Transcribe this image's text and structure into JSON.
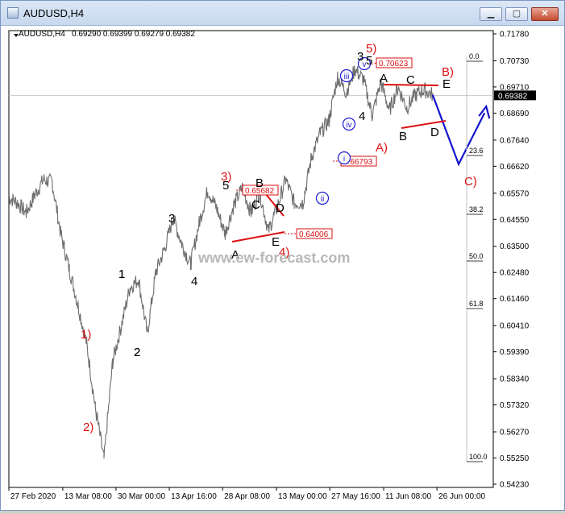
{
  "window": {
    "title": "AUDUSD,H4",
    "buttons": {
      "minimize": "▁",
      "maximize": "▢",
      "close": "✕"
    }
  },
  "chart_header": {
    "symbol": "AUDUSD,H4",
    "ohlc": "0.69290 0.69399 0.69279 0.69382"
  },
  "watermark": "www.ew-forecast.com",
  "chart_data": {
    "type": "line",
    "x_labels": [
      "27 Feb 2020",
      "13 Mar 08:00",
      "30 Mar 00:00",
      "13 Apr 16:00",
      "28 Apr 08:00",
      "13 May 00:00",
      "27 May 16:00",
      "11 Jun 08:00",
      "26 Jun 00:00"
    ],
    "y_ticks": [
      "0.71780",
      "0.70730",
      "0.69710",
      "0.68690",
      "0.67640",
      "0.66620",
      "0.65570",
      "0.64550",
      "0.63500",
      "0.62480",
      "0.61460",
      "0.60410",
      "0.59390",
      "0.58340",
      "0.57320",
      "0.56270",
      "0.55250",
      "0.54230"
    ],
    "current_price": "0.69382",
    "price_path": [
      [
        0,
        0.654
      ],
      [
        1,
        0.652
      ],
      [
        2,
        0.648
      ],
      [
        3,
        0.655
      ],
      [
        4,
        0.661
      ],
      [
        5,
        0.66
      ],
      [
        6,
        0.64
      ],
      [
        7,
        0.626
      ],
      [
        8,
        0.612
      ],
      [
        9,
        0.597
      ],
      [
        10,
        0.572
      ],
      [
        11,
        0.552
      ],
      [
        12,
        0.59
      ],
      [
        13,
        0.604
      ],
      [
        14,
        0.619
      ],
      [
        15,
        0.622
      ],
      [
        16,
        0.601
      ],
      [
        17,
        0.625
      ],
      [
        18,
        0.634
      ],
      [
        19,
        0.646
      ],
      [
        20,
        0.636
      ],
      [
        21,
        0.628
      ],
      [
        22,
        0.644
      ],
      [
        23,
        0.657
      ],
      [
        24,
        0.65
      ],
      [
        25,
        0.64
      ],
      [
        26,
        0.651
      ],
      [
        27,
        0.658
      ],
      [
        28,
        0.648
      ],
      [
        29,
        0.656
      ],
      [
        30,
        0.641
      ],
      [
        31,
        0.65
      ],
      [
        32,
        0.661
      ],
      [
        33,
        0.652
      ],
      [
        34,
        0.652
      ],
      [
        35,
        0.67
      ],
      [
        36,
        0.679
      ],
      [
        37,
        0.684
      ],
      [
        38,
        0.701
      ],
      [
        39,
        0.695
      ],
      [
        40,
        0.704
      ],
      [
        41,
        0.7
      ],
      [
        42,
        0.686
      ],
      [
        43,
        0.699
      ],
      [
        44,
        0.688
      ],
      [
        45,
        0.697
      ],
      [
        46,
        0.689
      ],
      [
        47,
        0.694
      ],
      [
        48,
        0.696
      ],
      [
        49,
        0.694
      ]
    ],
    "projection": [
      [
        49,
        0.694
      ],
      [
        52,
        0.667
      ],
      [
        55,
        0.687
      ]
    ],
    "wave_labels": [
      {
        "text": "1)",
        "x": 12.6,
        "y": 0.599,
        "color": "red"
      },
      {
        "text": "2)",
        "x": 13.2,
        "y": 0.566,
        "color": "red"
      },
      {
        "text": "1",
        "x": 18.0,
        "y": 0.624,
        "color": "black"
      },
      {
        "text": "2",
        "x": 20.3,
        "y": 0.593,
        "color": "black"
      },
      {
        "text": "3",
        "x": 25.6,
        "y": 0.647,
        "color": "black"
      },
      {
        "text": "4",
        "x": 29.0,
        "y": 0.62,
        "color": "black"
      },
      {
        "text": "3)",
        "x": 33.9,
        "y": 0.662,
        "color": "red"
      },
      {
        "text": "5",
        "x": 33.9,
        "y": 0.658,
        "color": "black"
      },
      {
        "text": "B",
        "x": 39.0,
        "y": 0.659,
        "color": "black"
      },
      {
        "text": "A",
        "x": 35.3,
        "y": 0.631,
        "color": "black"
      },
      {
        "text": "C",
        "x": 41.4,
        "y": 0.641,
        "color": "black"
      },
      {
        "text": "D",
        "x": 42.2,
        "y": 0.649,
        "color": "black"
      },
      {
        "text": "E",
        "x": 42.7,
        "y": 0.637,
        "color": "black"
      },
      {
        "text": "4)",
        "x": 42.7,
        "y": 0.632,
        "color": "red"
      },
      {
        "text": "1",
        "x": 44.4,
        "y": 0.664,
        "color": "black"
      },
      {
        "text": "2",
        "x": 45.7,
        "y": 0.645,
        "color": "black"
      },
      {
        "text": "i",
        "x": 47.6,
        "y": 0.669,
        "color": "blue"
      },
      {
        "text": "ii",
        "x": 48.3,
        "y": 0.655,
        "color": "blue"
      },
      {
        "text": "iii",
        "x": 51.4,
        "y": 0.701,
        "color": "blue"
      },
      {
        "text": "iv",
        "x": 51.8,
        "y": 0.684,
        "color": "blue"
      },
      {
        "text": "v",
        "x": 54.0,
        "y": 0.707,
        "color": "blue"
      },
      {
        "text": "3",
        "x": 54.0,
        "y": 0.71,
        "color": "black"
      },
      {
        "text": "5",
        "x": 55.4,
        "y": 0.709,
        "color": "black"
      },
      {
        "text": "5)",
        "x": 55.5,
        "y": 0.714,
        "color": "red"
      },
      {
        "text": "4",
        "x": 54.4,
        "y": 0.689,
        "color": "black"
      },
      {
        "text": "A",
        "x": 58.0,
        "y": 0.701,
        "color": "black"
      },
      {
        "text": "A)",
        "x": 57.2,
        "y": 0.676,
        "color": "red"
      },
      {
        "text": "C",
        "x": 61.6,
        "y": 0.7,
        "color": "black"
      },
      {
        "text": "B",
        "x": 60.6,
        "y": 0.682,
        "color": "black"
      },
      {
        "text": "D",
        "x": 65.4,
        "y": 0.683,
        "color": "black"
      },
      {
        "text": "B)",
        "x": 67.3,
        "y": 0.702,
        "color": "red"
      },
      {
        "text": "E",
        "x": 67.0,
        "y": 0.698,
        "color": "black"
      },
      {
        "text": "C)",
        "x": 70.5,
        "y": 0.662,
        "color": "red"
      }
    ],
    "price_boxes": [
      "0.70623",
      "0.66793",
      "0.65682",
      "0.64006"
    ],
    "fib_levels": [
      {
        "label": "0.0"
      },
      {
        "label": "23.6"
      },
      {
        "label": "38.2"
      },
      {
        "label": "50.0"
      },
      {
        "label": "61.8"
      },
      {
        "label": "100.0"
      }
    ]
  }
}
